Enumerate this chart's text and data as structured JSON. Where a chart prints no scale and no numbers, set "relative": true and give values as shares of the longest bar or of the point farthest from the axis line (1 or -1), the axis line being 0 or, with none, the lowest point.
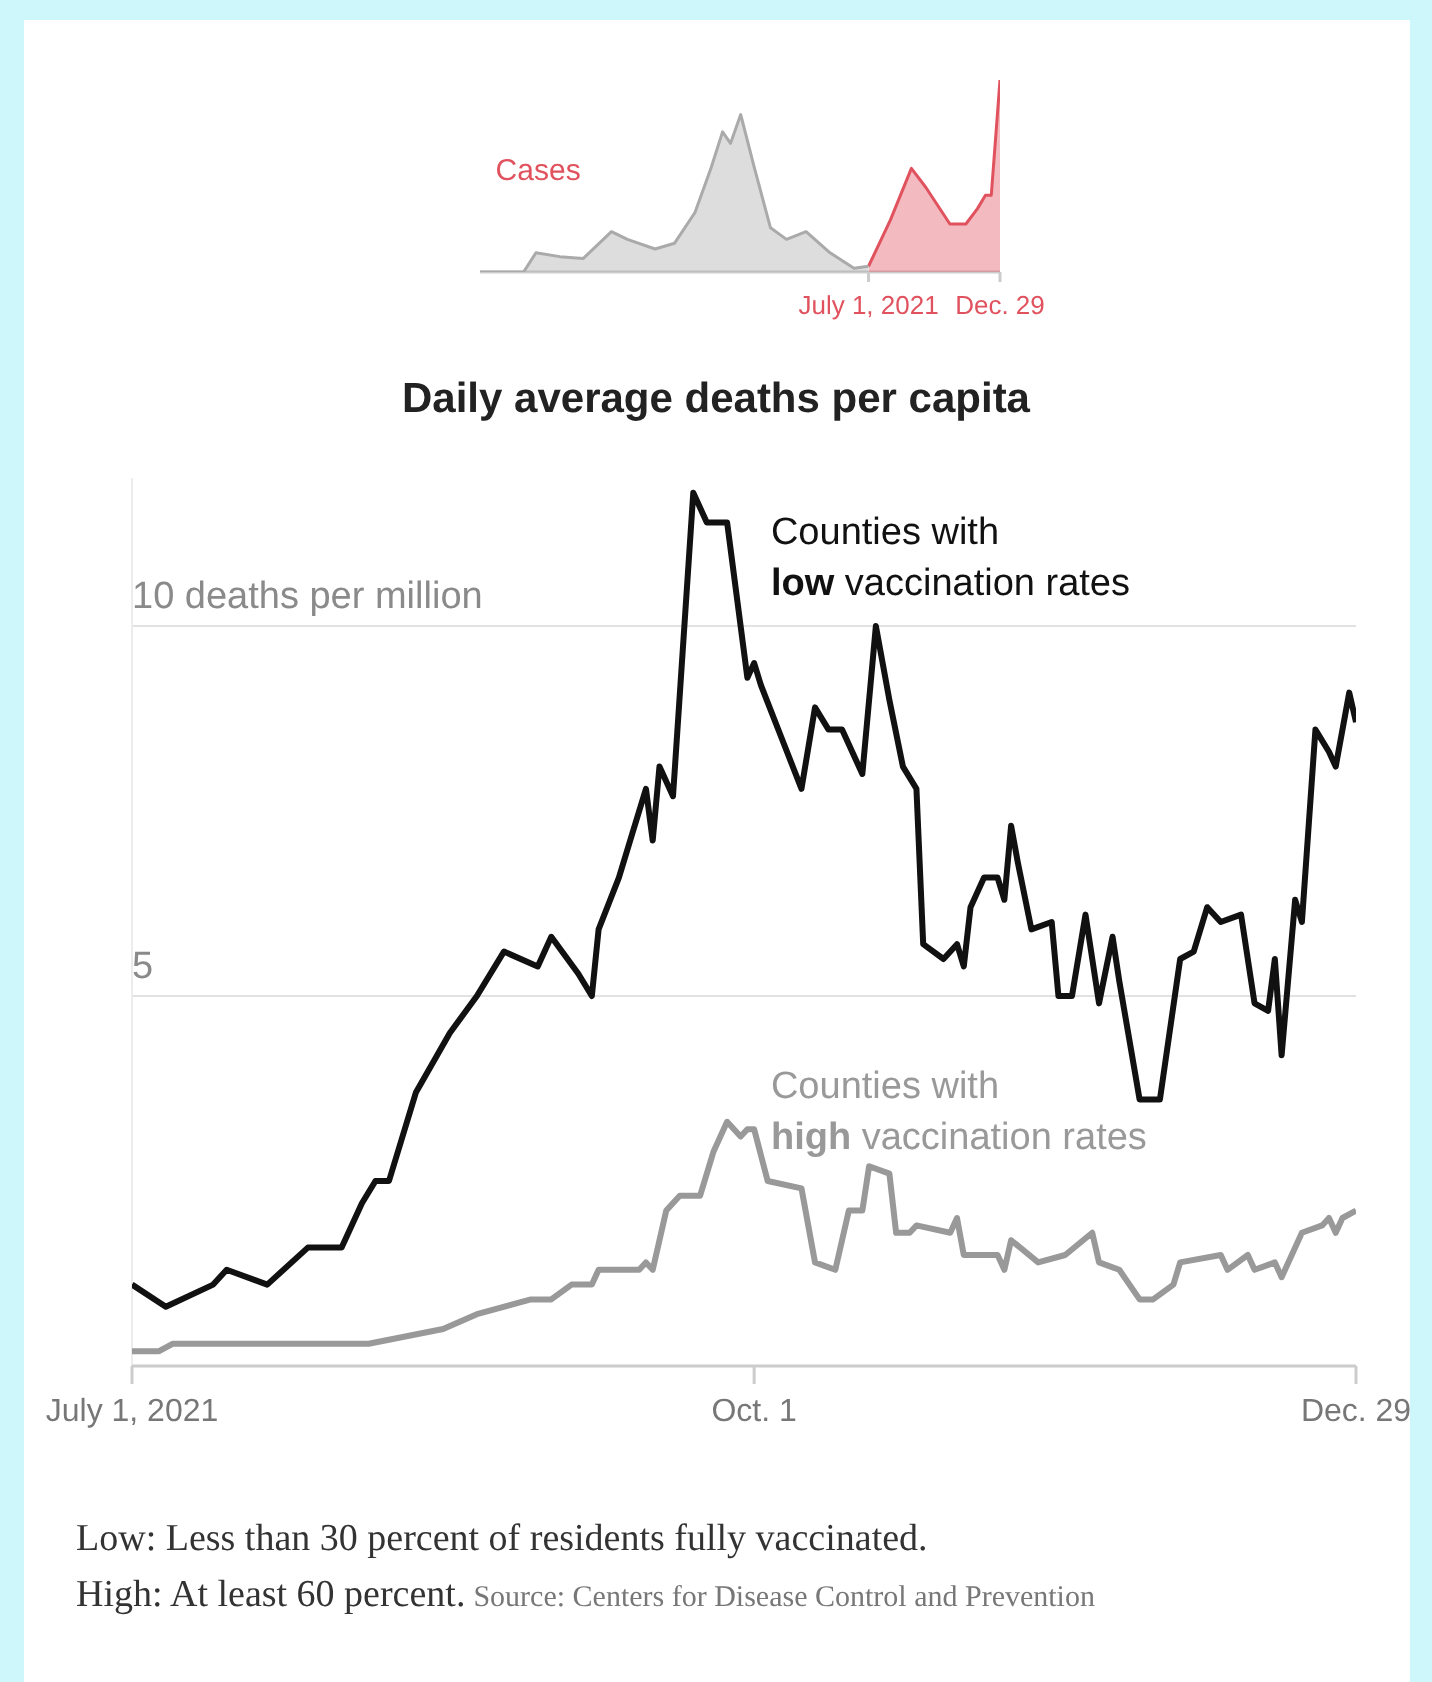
{
  "chart_data": [
    {
      "type": "area",
      "relative": true,
      "xlim": [
        "2020-01-13",
        "2021-12-29"
      ],
      "xticks": [
        {
          "value": "2021-07-01",
          "label": "July 1, 2021"
        },
        {
          "value": "2021-12-29",
          "label": "Dec. 29"
        }
      ],
      "series": [
        {
          "color": "#aaaaaa",
          "x": [
            "2020-01-13",
            "2020-03-13",
            "2020-03-30",
            "2020-05-02",
            "2020-06-03",
            "2020-07-12",
            "2020-08-03",
            "2020-09-10",
            "2020-10-07",
            "2020-11-04",
            "2020-11-26",
            "2020-12-12",
            "2020-12-23",
            "2021-01-06",
            "2021-01-25",
            "2021-02-16",
            "2021-03-10",
            "2021-04-06",
            "2021-05-09",
            "2021-06-11",
            "2021-07-01"
          ],
          "values": [
            0,
            0,
            0.1,
            0.08,
            0.07,
            0.21,
            0.17,
            0.12,
            0.15,
            0.31,
            0.54,
            0.73,
            0.67,
            0.82,
            0.54,
            0.23,
            0.17,
            0.21,
            0.1,
            0.02,
            0.03
          ]
        },
        {
          "name": "Cases",
          "color": "#e0525e",
          "x": [
            "2021-07-01",
            "2021-07-31",
            "2021-08-29",
            "2021-09-18",
            "2021-10-21",
            "2021-11-12",
            "2021-11-28",
            "2021-12-09",
            "2021-12-17",
            "2021-12-29"
          ],
          "values": [
            0.03,
            0.27,
            0.54,
            0.44,
            0.25,
            0.25,
            0.33,
            0.4,
            0.4,
            1
          ]
        }
      ]
    },
    {
      "type": "line",
      "title": "Daily average deaths per capita",
      "xlim": [
        "2021-07-01",
        "2021-12-29"
      ],
      "xticks": [
        {
          "value": "2021-07-01",
          "label": "July 1, 2021"
        },
        {
          "value": "2021-10-01",
          "label": "Oct. 1"
        },
        {
          "value": "2021-12-29",
          "label": "Dec. 29"
        }
      ],
      "ylim": [
        0,
        12
      ],
      "yticks": [
        {
          "value": 0,
          "label": null
        },
        5,
        {
          "value": 10,
          "label": "10 deaths per million"
        }
      ],
      "grid": "y",
      "series": [
        {
          "name": "Counties with low vaccination rates",
          "color": "#111111",
          "x": [
            "2021-07-01",
            "2021-07-06",
            "2021-07-13",
            "2021-07-15",
            "2021-07-21",
            "2021-07-27",
            "2021-08-01",
            "2021-08-04",
            "2021-08-06",
            "2021-08-08",
            "2021-08-12",
            "2021-08-17",
            "2021-08-21",
            "2021-08-25",
            "2021-08-30",
            "2021-09-01",
            "2021-09-05",
            "2021-09-07",
            "2021-09-08",
            "2021-09-11",
            "2021-09-13",
            "2021-09-15",
            "2021-09-16",
            "2021-09-17",
            "2021-09-19",
            "2021-09-22",
            "2021-09-24",
            "2021-09-27",
            "2021-09-30",
            "2021-10-01",
            "2021-10-02",
            "2021-10-05",
            "2021-10-08",
            "2021-10-10",
            "2021-10-12",
            "2021-10-14",
            "2021-10-17",
            "2021-10-19",
            "2021-10-21",
            "2021-10-23",
            "2021-10-25",
            "2021-10-26",
            "2021-10-29",
            "2021-10-31",
            "2021-11-01",
            "2021-11-02",
            "2021-11-04",
            "2021-11-06",
            "2021-11-07",
            "2021-11-08",
            "2021-11-09",
            "2021-11-11",
            "2021-11-14",
            "2021-11-15",
            "2021-11-17",
            "2021-11-19",
            "2021-11-21",
            "2021-11-23",
            "2021-11-24",
            "2021-11-27",
            "2021-11-30",
            "2021-12-03",
            "2021-12-05",
            "2021-12-07",
            "2021-12-09",
            "2021-12-12",
            "2021-12-14",
            "2021-12-16",
            "2021-12-17",
            "2021-12-18",
            "2021-12-20",
            "2021-12-21",
            "2021-12-23",
            "2021-12-25",
            "2021-12-26",
            "2021-12-28",
            "2021-12-29"
          ],
          "values": [
            1.1,
            0.8,
            1.1,
            1.3,
            1.1,
            1.6,
            1.6,
            2.2,
            2.5,
            2.5,
            3.7,
            4.5,
            5.0,
            5.6,
            5.4,
            5.8,
            5.3,
            5.0,
            5.9,
            6.6,
            7.2,
            7.8,
            7.1,
            8.1,
            7.7,
            11.8,
            11.4,
            11.4,
            9.3,
            9.5,
            9.2,
            8.5,
            7.8,
            8.9,
            8.6,
            8.6,
            8.0,
            10.0,
            9.0,
            8.1,
            7.8,
            5.7,
            5.5,
            5.7,
            5.4,
            6.2,
            6.6,
            6.6,
            6.3,
            7.3,
            6.8,
            5.9,
            6.0,
            5.0,
            5.0,
            6.1,
            4.9,
            5.8,
            5.2,
            3.6,
            3.6,
            5.5,
            5.6,
            6.2,
            6.0,
            6.1,
            4.9,
            4.8,
            5.5,
            4.2,
            6.3,
            6.0,
            8.6,
            8.3,
            8.1,
            9.1,
            8.7
          ]
        },
        {
          "name": "Counties with high vaccination rates",
          "color": "#999999",
          "x": [
            "2021-07-01",
            "2021-07-05",
            "2021-07-07",
            "2021-07-16",
            "2021-08-01",
            "2021-08-05",
            "2021-08-16",
            "2021-08-21",
            "2021-08-29",
            "2021-09-01",
            "2021-09-04",
            "2021-09-07",
            "2021-09-08",
            "2021-09-14",
            "2021-09-15",
            "2021-09-16",
            "2021-09-18",
            "2021-09-20",
            "2021-09-23",
            "2021-09-25",
            "2021-09-27",
            "2021-09-29",
            "2021-09-30",
            "2021-10-01",
            "2021-10-03",
            "2021-10-08",
            "2021-10-10",
            "2021-10-13",
            "2021-10-15",
            "2021-10-17",
            "2021-10-18",
            "2021-10-21",
            "2021-10-22",
            "2021-10-24",
            "2021-10-25",
            "2021-10-30",
            "2021-10-31",
            "2021-11-01",
            "2021-11-06",
            "2021-11-07",
            "2021-11-08",
            "2021-11-12",
            "2021-11-16",
            "2021-11-20",
            "2021-11-21",
            "2021-11-24",
            "2021-11-27",
            "2021-11-29",
            "2021-12-02",
            "2021-12-03",
            "2021-12-09",
            "2021-12-10",
            "2021-12-13",
            "2021-12-14",
            "2021-12-17",
            "2021-12-18",
            "2021-12-21",
            "2021-12-24",
            "2021-12-25",
            "2021-12-26",
            "2021-12-27",
            "2021-12-29"
          ],
          "values": [
            0.2,
            0.2,
            0.3,
            0.3,
            0.3,
            0.3,
            0.5,
            0.7,
            0.9,
            0.9,
            1.1,
            1.1,
            1.3,
            1.3,
            1.4,
            1.3,
            2.1,
            2.3,
            2.3,
            2.9,
            3.3,
            3.1,
            3.2,
            3.2,
            2.5,
            2.4,
            1.4,
            1.3,
            2.1,
            2.1,
            2.7,
            2.6,
            1.8,
            1.8,
            1.9,
            1.8,
            2.0,
            1.5,
            1.5,
            1.3,
            1.7,
            1.4,
            1.5,
            1.8,
            1.4,
            1.3,
            0.9,
            0.9,
            1.1,
            1.4,
            1.5,
            1.3,
            1.5,
            1.3,
            1.4,
            1.2,
            1.8,
            1.9,
            2.0,
            1.8,
            2.0,
            2.1
          ]
        }
      ],
      "annotations": [
        "Low: Less than 30 percent of residents fully vaccinated.",
        "High: At least 60 percent.",
        "Source: Centers for Disease Control and Prevention"
      ]
    }
  ]
}
